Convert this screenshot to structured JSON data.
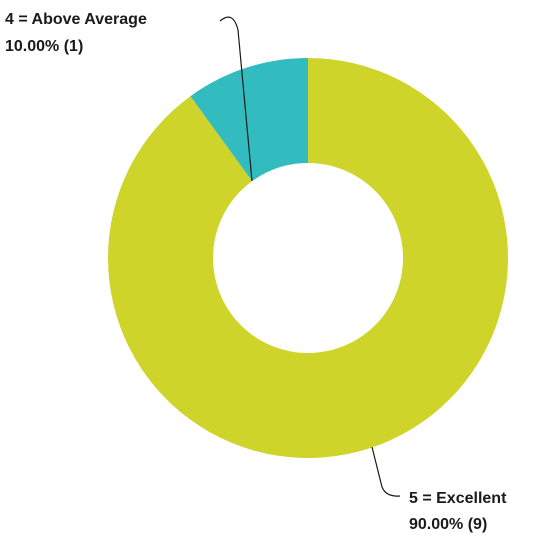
{
  "chart_data": {
    "type": "pie",
    "donut": true,
    "slices": [
      {
        "category": "5 = Excellent",
        "percent_label": "90.00% (9)",
        "value": 9,
        "percent": 90.0,
        "color": "#cfd42a"
      },
      {
        "category": "4 = Above Average",
        "percent_label": "10.00% (1)",
        "value": 1,
        "percent": 10.0,
        "color": "#32bcbf"
      }
    ]
  }
}
